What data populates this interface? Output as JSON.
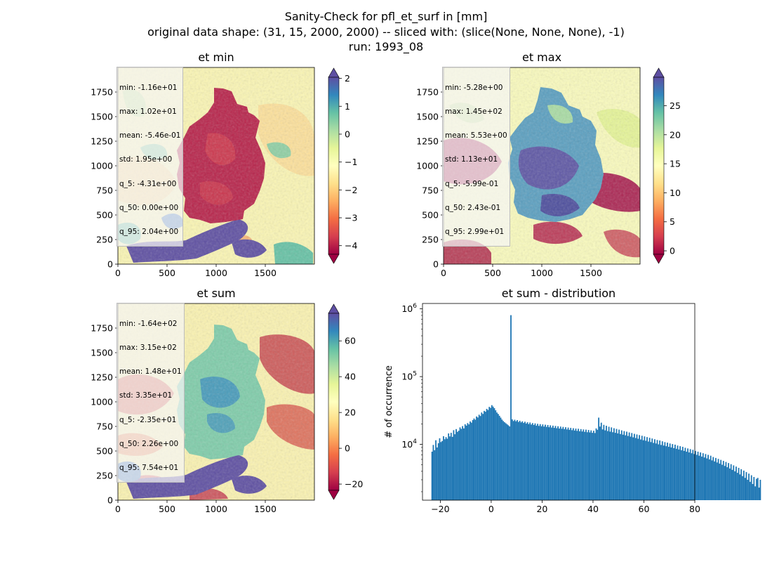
{
  "figure": {
    "title_lines": [
      "Sanity-Check for pfl_et_surf in [mm]",
      "original data shape: (31, 15, 2000, 2000) -- sliced with: (slice(None, None, None), -1)",
      "run: 1993_08"
    ]
  },
  "panels": [
    {
      "title": "et min",
      "stats": [
        "min: -1.16e+01",
        "max: 1.02e+01",
        "mean: -5.46e-01",
        "std: 1.95e+00",
        "q_5: -4.31e+00",
        "q_50: 0.00e+00",
        "q_95: 2.04e+00"
      ],
      "colorbar": {
        "vmin": -4.31,
        "vmax": 2.04,
        "ticks": [
          "−4",
          "−3",
          "−2",
          "−1",
          "0",
          "1",
          "2"
        ],
        "tick_values": [
          -4,
          -3,
          -2,
          -1,
          0,
          1,
          2
        ]
      }
    },
    {
      "title": "et max",
      "stats": [
        "min: -5.28e+00",
        "max: 1.45e+02",
        "mean: 5.53e+00",
        "std: 1.13e+01",
        "q_5: -5.99e-01",
        "q_50: 2.43e-01",
        "q_95: 2.99e+01"
      ],
      "colorbar": {
        "vmin": -0.599,
        "vmax": 29.9,
        "ticks": [
          "0",
          "5",
          "10",
          "15",
          "20",
          "25"
        ],
        "tick_values": [
          0,
          5,
          10,
          15,
          20,
          25
        ]
      }
    },
    {
      "title": "et sum",
      "stats": [
        "min: -1.64e+02",
        "max: 3.15e+02",
        "mean: 1.48e+01",
        "std: 3.35e+01",
        "q_5: -2.35e+01",
        "q_50: 2.26e+00",
        "q_95: 7.54e+01"
      ],
      "colorbar": {
        "vmin": -23.5,
        "vmax": 75.4,
        "ticks": [
          "−20",
          "0",
          "20",
          "40",
          "60"
        ],
        "tick_values": [
          -20,
          0,
          20,
          40,
          60
        ]
      }
    }
  ],
  "map_axes": {
    "xticks": [
      "0",
      "500",
      "1000",
      "1500"
    ],
    "xtick_values": [
      0,
      500,
      1000,
      1500
    ],
    "yticks": [
      "0",
      "250",
      "500",
      "750",
      "1000",
      "1250",
      "1500",
      "1750"
    ],
    "ytick_values": [
      0,
      250,
      500,
      750,
      1000,
      1250,
      1500,
      1750
    ],
    "xlim": [
      0,
      2000
    ],
    "ylim": [
      0,
      2000
    ]
  },
  "chart_data": {
    "type": "bar",
    "title": "et sum - distribution",
    "xlabel": "",
    "ylabel": "# of occurrence",
    "yscale": "log",
    "xlim": [
      -27,
      80
    ],
    "ylim": [
      1500,
      1200000
    ],
    "xticks": [
      "−20",
      "0",
      "20",
      "40",
      "60",
      "80"
    ],
    "xtick_values": [
      -20,
      0,
      20,
      40,
      60,
      80
    ],
    "ytick_labels": [
      "10",
      "10",
      "10"
    ],
    "ytick_exponents": [
      "4",
      "5",
      "6"
    ],
    "ytick_values": [
      10000,
      100000,
      1000000
    ],
    "bin_start": -23.5,
    "bin_width": 0.5,
    "counts": [
      7800,
      9800,
      8200,
      11500,
      9000,
      10400,
      12300,
      10800,
      11200,
      13200,
      11900,
      12800,
      12100,
      14500,
      13100,
      14800,
      12900,
      16200,
      14100,
      16800,
      15300,
      15900,
      17800,
      16900,
      18600,
      17200,
      19800,
      18900,
      20600,
      19700,
      21800,
      20900,
      22800,
      24100,
      23100,
      25800,
      24900,
      27400,
      26200,
      29500,
      28100,
      31200,
      30300,
      33400,
      32100,
      35700,
      34600,
      37900,
      36100,
      34200,
      31800,
      29500,
      28100,
      26400,
      24800,
      23200,
      22100,
      21200,
      20500,
      19800,
      19100,
      18400,
      807000,
      23400,
      22100,
      23100,
      21900,
      22800,
      21400,
      22300,
      21100,
      21900,
      20700,
      21600,
      20300,
      21200,
      19900,
      21000,
      19600,
      20600,
      19300,
      20400,
      18900,
      20100,
      18700,
      19900,
      18500,
      19700,
      18300,
      19500,
      18100,
      19300,
      17900,
      19100,
      17700,
      18900,
      17500,
      18700,
      17300,
      18500,
      17100,
      18300,
      17000,
      18100,
      16800,
      17900,
      16600,
      17700,
      16400,
      17500,
      16200,
      17300,
      16000,
      17100,
      15800,
      17000,
      15600,
      16800,
      15500,
      16600,
      15300,
      16500,
      15100,
      16300,
      15000,
      16100,
      14800,
      15900,
      14700,
      17200,
      16400,
      24800,
      18300,
      20900,
      16600,
      19400,
      16100,
      18800,
      15700,
      18200,
      15400,
      17800,
      15100,
      17300,
      14800,
      16900,
      14500,
      16500,
      14200,
      16100,
      13900,
      15700,
      13600,
      15400,
      13300,
      15000,
      13000,
      14700,
      12700,
      14300,
      12400,
      14000,
      12100,
      13700,
      11800,
      13400,
      11500,
      13100,
      11300,
      12800,
      11000,
      12500,
      10800,
      12200,
      10500,
      11900,
      10300,
      11600,
      10000,
      11400,
      9800,
      11100,
      9600,
      10800,
      9400,
      10600,
      9200,
      10300,
      9000,
      10100,
      8800,
      9900,
      8600,
      9600,
      8400,
      9400,
      8200,
      9200,
      8000,
      8900,
      7800,
      8700,
      7600,
      8500,
      7400,
      8300,
      7200,
      8000,
      7000,
      7800,
      6800,
      7600,
      6600,
      7400,
      6400,
      7200,
      6200,
      7000,
      6000,
      6800,
      5800,
      6500,
      5600,
      6300,
      5400,
      6100,
      5200,
      5900,
      5000,
      5700,
      4800,
      5500,
      4600,
      5300,
      4400,
      5100,
      4200,
      4900,
      4000,
      4700,
      3800,
      4500,
      3600,
      4300,
      3400,
      4100,
      3200,
      3900,
      3000,
      3700,
      2800,
      3500,
      2600,
      3300,
      2400,
      3100,
      3200,
      2300,
      3000
    ],
    "bar_color": "#1f77b4"
  }
}
